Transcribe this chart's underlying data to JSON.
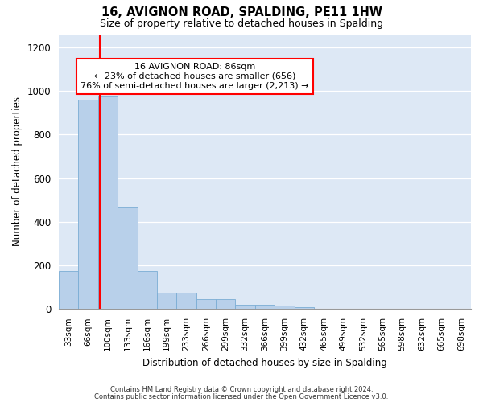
{
  "title": "16, AVIGNON ROAD, SPALDING, PE11 1HW",
  "subtitle": "Size of property relative to detached houses in Spalding",
  "xlabel": "Distribution of detached houses by size in Spalding",
  "ylabel": "Number of detached properties",
  "bar_categories": [
    "33sqm",
    "66sqm",
    "100sqm",
    "133sqm",
    "166sqm",
    "199sqm",
    "233sqm",
    "266sqm",
    "299sqm",
    "332sqm",
    "366sqm",
    "399sqm",
    "432sqm",
    "465sqm",
    "499sqm",
    "532sqm",
    "565sqm",
    "598sqm",
    "632sqm",
    "665sqm",
    "698sqm"
  ],
  "bar_values": [
    175,
    960,
    975,
    465,
    175,
    75,
    75,
    45,
    45,
    20,
    20,
    15,
    10,
    0,
    0,
    0,
    0,
    0,
    0,
    0,
    0
  ],
  "bar_color": "#b8d0ea",
  "bar_edge_color": "#7aadd4",
  "property_sqm": 86,
  "annotation_text": "16 AVIGNON ROAD: 86sqm\n← 23% of detached houses are smaller (656)\n76% of semi-detached houses are larger (2,213) →",
  "annotation_box_color": "white",
  "annotation_box_edge": "red",
  "red_line_color": "red",
  "grid_color": "#cccccc",
  "background_color": "#dde8f5",
  "ylim": [
    0,
    1260
  ],
  "yticks": [
    0,
    200,
    400,
    600,
    800,
    1000,
    1200
  ],
  "footer_line1": "Contains HM Land Registry data © Crown copyright and database right 2024.",
  "footer_line2": "Contains public sector information licensed under the Open Government Licence v3.0."
}
